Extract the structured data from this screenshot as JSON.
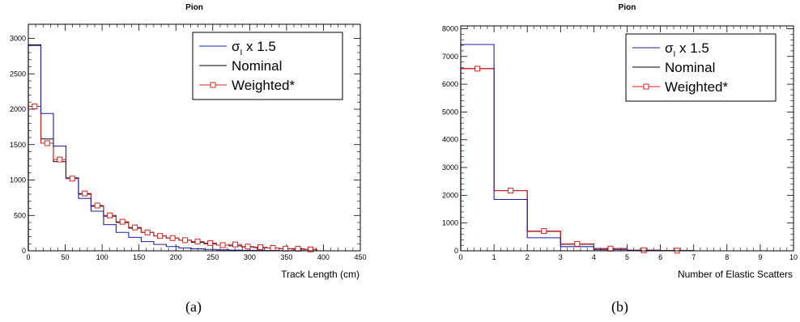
{
  "captions": [
    "(a)",
    "(b)"
  ],
  "legend_symbols": {
    "sigma": "σ",
    "sub": "I"
  },
  "colors": {
    "sigma": "#1f1fa0",
    "nominal": "#000000",
    "weighted": "#d42020"
  },
  "chart_data": [
    {
      "type": "histogram",
      "title": "Pion",
      "xlabel": "Track Length (cm)",
      "ylabel": "",
      "xlim": [
        0,
        450
      ],
      "ylim": [
        0,
        3200
      ],
      "xticks": [
        0,
        50,
        100,
        150,
        200,
        250,
        300,
        350,
        400,
        450
      ],
      "xtick_labels": [
        "0",
        "50",
        "100",
        "150",
        "200",
        "250",
        "300",
        "350",
        "400",
        "450"
      ],
      "yticks": [
        0,
        500,
        1000,
        1500,
        2000,
        2500,
        3000
      ],
      "ytick_labels": [
        "0",
        "500",
        "1000",
        "1500",
        "2000",
        "2500",
        "3000"
      ],
      "legend_position": "top-right",
      "bin_edges": [
        0,
        17,
        34,
        51,
        68,
        85,
        102,
        119,
        136,
        153,
        170,
        187,
        204,
        221,
        238,
        255,
        272,
        289,
        306,
        323,
        340,
        357,
        374,
        391
      ],
      "series": [
        {
          "name": " x 1.5",
          "values": [
            2900,
            1940,
            1480,
            1030,
            740,
            560,
            370,
            260,
            190,
            130,
            90,
            60,
            40,
            28,
            20,
            14,
            10,
            7,
            5,
            4,
            3,
            2,
            1
          ]
        },
        {
          "name": "Nominal",
          "values": [
            2910,
            1580,
            1260,
            1030,
            800,
            630,
            490,
            400,
            320,
            260,
            210,
            180,
            150,
            120,
            100,
            80,
            70,
            55,
            45,
            40,
            30,
            25,
            20
          ]
        },
        {
          "name": "Weighted*",
          "values": [
            2040,
            1520,
            1290,
            1020,
            810,
            640,
            500,
            410,
            330,
            260,
            210,
            180,
            150,
            130,
            110,
            80,
            90,
            60,
            50,
            40,
            30,
            30,
            20
          ]
        }
      ]
    },
    {
      "type": "histogram",
      "title": "Pion",
      "xlabel": "Number of Elastic Scatters",
      "ylabel": "",
      "xlim": [
        0,
        10
      ],
      "ylim": [
        0,
        8100
      ],
      "xticks": [
        0,
        1,
        2,
        3,
        4,
        5,
        6,
        7,
        8,
        9,
        10
      ],
      "xtick_labels": [
        "0",
        "1",
        "2",
        "3",
        "4",
        "5",
        "6",
        "7",
        "8",
        "9",
        "10"
      ],
      "yticks": [
        0,
        1000,
        2000,
        3000,
        4000,
        5000,
        6000,
        7000,
        8000
      ],
      "ytick_labels": [
        "0",
        "1000",
        "2000",
        "3000",
        "4000",
        "5000",
        "6000",
        "7000",
        "8000"
      ],
      "legend_position": "top-right",
      "bin_edges": [
        0,
        1,
        2,
        3,
        4,
        5,
        6,
        7
      ],
      "series": [
        {
          "name": " x 1.5",
          "values": [
            7430,
            1850,
            470,
            150,
            40,
            10,
            2
          ]
        },
        {
          "name": "Nominal",
          "values": [
            6560,
            2170,
            700,
            240,
            80,
            20,
            5
          ]
        },
        {
          "name": "Weighted*",
          "values": [
            6560,
            2170,
            710,
            250,
            80,
            20,
            5
          ]
        }
      ]
    }
  ]
}
